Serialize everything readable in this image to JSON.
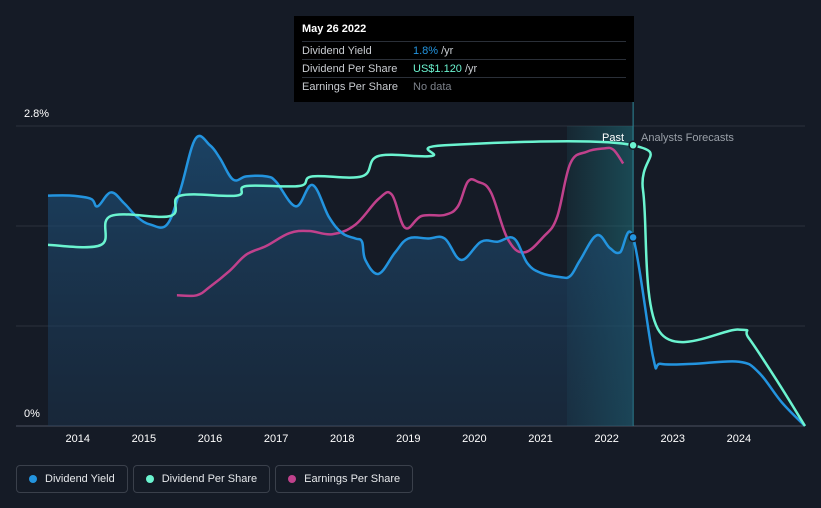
{
  "tooltip": {
    "date": "May 26 2022",
    "rows": [
      {
        "label": "Dividend Yield",
        "value": "1.8%",
        "unit": "/yr"
      },
      {
        "label": "Dividend Per Share",
        "value": "US$1.120",
        "unit": "/yr"
      },
      {
        "label": "Earnings Per Share",
        "value": "No data",
        "unit": ""
      }
    ]
  },
  "regions": {
    "past": "Past",
    "forecast": "Analysts Forecasts"
  },
  "legend": {
    "yield": "Dividend Yield",
    "dps": "Dividend Per Share",
    "eps": "Earnings Per Share"
  },
  "colors": {
    "yield": "#2394df",
    "dps": "#6bf4d0",
    "eps": "#c0418c",
    "background": "#151b26"
  },
  "chart_data": {
    "type": "line",
    "ylim": [
      0,
      2.8
    ],
    "y_tick_labels": [
      "2.8%",
      "0%"
    ],
    "x_ticks": [
      "2014",
      "2015",
      "2016",
      "2017",
      "2018",
      "2019",
      "2020",
      "2021",
      "2022",
      "2023",
      "2024"
    ],
    "xlim": [
      2013.55,
      2025.0
    ],
    "past_end": 2022.4,
    "highlight_start": 2021.4,
    "series": [
      {
        "name": "Dividend Yield",
        "key": "yield",
        "area": true,
        "points": [
          [
            2013.55,
            2.15
          ],
          [
            2013.9,
            2.15
          ],
          [
            2014.2,
            2.12
          ],
          [
            2014.3,
            2.05
          ],
          [
            2014.5,
            2.18
          ],
          [
            2014.7,
            2.08
          ],
          [
            2014.9,
            1.95
          ],
          [
            2015.1,
            1.88
          ],
          [
            2015.35,
            1.88
          ],
          [
            2015.55,
            2.2
          ],
          [
            2015.78,
            2.68
          ],
          [
            2016.0,
            2.62
          ],
          [
            2016.15,
            2.5
          ],
          [
            2016.35,
            2.3
          ],
          [
            2016.55,
            2.33
          ],
          [
            2016.85,
            2.33
          ],
          [
            2017.0,
            2.28
          ],
          [
            2017.3,
            2.05
          ],
          [
            2017.55,
            2.25
          ],
          [
            2017.8,
            1.95
          ],
          [
            2018.0,
            1.8
          ],
          [
            2018.2,
            1.75
          ],
          [
            2018.3,
            1.72
          ],
          [
            2018.35,
            1.55
          ],
          [
            2018.55,
            1.42
          ],
          [
            2018.8,
            1.62
          ],
          [
            2019.0,
            1.75
          ],
          [
            2019.3,
            1.75
          ],
          [
            2019.55,
            1.75
          ],
          [
            2019.8,
            1.55
          ],
          [
            2020.1,
            1.72
          ],
          [
            2020.35,
            1.72
          ],
          [
            2020.6,
            1.75
          ],
          [
            2020.8,
            1.52
          ],
          [
            2021.0,
            1.43
          ],
          [
            2021.3,
            1.39
          ],
          [
            2021.45,
            1.4
          ],
          [
            2021.6,
            1.55
          ],
          [
            2021.85,
            1.78
          ],
          [
            2022.05,
            1.66
          ],
          [
            2022.2,
            1.62
          ],
          [
            2022.4,
            1.76
          ],
          [
            2022.7,
            0.65
          ],
          [
            2022.82,
            0.58
          ],
          [
            2023.3,
            0.58
          ],
          [
            2024.0,
            0.6
          ],
          [
            2024.3,
            0.5
          ],
          [
            2024.65,
            0.22
          ],
          [
            2025.0,
            0.0
          ]
        ]
      },
      {
        "name": "Dividend Per Share",
        "key": "dps",
        "area": false,
        "points": [
          [
            2013.55,
            1.69
          ],
          [
            2014.35,
            1.69
          ],
          [
            2014.5,
            1.96
          ],
          [
            2015.4,
            1.96
          ],
          [
            2015.55,
            2.15
          ],
          [
            2016.4,
            2.15
          ],
          [
            2016.55,
            2.24
          ],
          [
            2017.35,
            2.24
          ],
          [
            2017.55,
            2.33
          ],
          [
            2018.3,
            2.33
          ],
          [
            2018.55,
            2.52
          ],
          [
            2019.35,
            2.52
          ],
          [
            2019.55,
            2.62
          ],
          [
            2022.4,
            2.62
          ],
          [
            2022.55,
            2.2
          ],
          [
            2022.8,
            0.88
          ],
          [
            2024.0,
            0.9
          ],
          [
            2024.15,
            0.82
          ],
          [
            2024.6,
            0.4
          ],
          [
            2025.0,
            0.0
          ]
        ]
      },
      {
        "name": "Earnings Per Share",
        "key": "eps",
        "area": false,
        "points": [
          [
            2015.5,
            1.22
          ],
          [
            2015.8,
            1.22
          ],
          [
            2016.0,
            1.3
          ],
          [
            2016.3,
            1.45
          ],
          [
            2016.55,
            1.6
          ],
          [
            2016.85,
            1.68
          ],
          [
            2017.2,
            1.8
          ],
          [
            2017.5,
            1.82
          ],
          [
            2017.85,
            1.79
          ],
          [
            2018.2,
            1.88
          ],
          [
            2018.55,
            2.12
          ],
          [
            2018.75,
            2.16
          ],
          [
            2018.95,
            1.85
          ],
          [
            2019.2,
            1.96
          ],
          [
            2019.55,
            1.97
          ],
          [
            2019.75,
            2.05
          ],
          [
            2019.9,
            2.28
          ],
          [
            2020.05,
            2.28
          ],
          [
            2020.25,
            2.18
          ],
          [
            2020.5,
            1.75
          ],
          [
            2020.75,
            1.62
          ],
          [
            2021.05,
            1.77
          ],
          [
            2021.25,
            1.95
          ],
          [
            2021.45,
            2.45
          ],
          [
            2021.7,
            2.56
          ],
          [
            2021.95,
            2.59
          ],
          [
            2022.1,
            2.58
          ],
          [
            2022.25,
            2.45
          ]
        ]
      }
    ],
    "markers": [
      {
        "series": "dps",
        "x": 2022.4,
        "y": 2.62
      },
      {
        "series": "yield",
        "x": 2022.4,
        "y": 1.76
      }
    ]
  }
}
